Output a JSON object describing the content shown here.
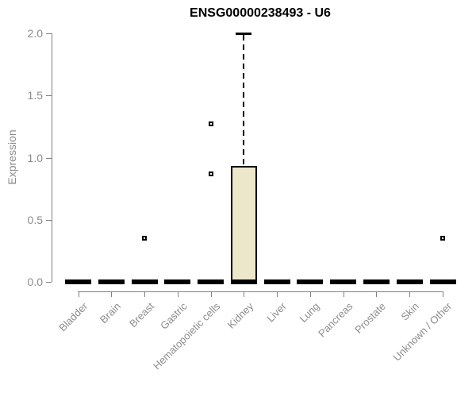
{
  "chart_data": {
    "type": "boxplot",
    "title": "ENSG00000238493 - U6",
    "ylabel": "Expression",
    "xlabel": "",
    "ylim": [
      0.0,
      2.0
    ],
    "yticks": [
      0.0,
      0.5,
      1.0,
      1.5,
      2.0
    ],
    "grid": false,
    "legend": false,
    "categories": [
      "Bladder",
      "Brain",
      "Breast",
      "Gastric",
      "Hematopoietic cells",
      "Kidney",
      "Liver",
      "Lung",
      "Pancreas",
      "Prostate",
      "Skin",
      "Unknown / Other"
    ],
    "series": [
      {
        "name": "Bladder",
        "q1": 0.0,
        "median": 0.0,
        "q3": 0.0,
        "whisker_low": 0.0,
        "whisker_high": 0.0,
        "outliers": []
      },
      {
        "name": "Brain",
        "q1": 0.0,
        "median": 0.0,
        "q3": 0.0,
        "whisker_low": 0.0,
        "whisker_high": 0.0,
        "outliers": []
      },
      {
        "name": "Breast",
        "q1": 0.0,
        "median": 0.0,
        "q3": 0.0,
        "whisker_low": 0.0,
        "whisker_high": 0.0,
        "outliers": [
          0.35
        ]
      },
      {
        "name": "Gastric",
        "q1": 0.0,
        "median": 0.0,
        "q3": 0.0,
        "whisker_low": 0.0,
        "whisker_high": 0.0,
        "outliers": []
      },
      {
        "name": "Hematopoietic cells",
        "q1": 0.0,
        "median": 0.0,
        "q3": 0.0,
        "whisker_low": 0.0,
        "whisker_high": 0.0,
        "outliers": [
          0.87,
          1.27
        ]
      },
      {
        "name": "Kidney",
        "q1": 0.0,
        "median": 0.0,
        "q3": 0.93,
        "whisker_low": 0.0,
        "whisker_high": 2.0,
        "outliers": []
      },
      {
        "name": "Liver",
        "q1": 0.0,
        "median": 0.0,
        "q3": 0.0,
        "whisker_low": 0.0,
        "whisker_high": 0.0,
        "outliers": []
      },
      {
        "name": "Lung",
        "q1": 0.0,
        "median": 0.0,
        "q3": 0.0,
        "whisker_low": 0.0,
        "whisker_high": 0.0,
        "outliers": []
      },
      {
        "name": "Pancreas",
        "q1": 0.0,
        "median": 0.0,
        "q3": 0.0,
        "whisker_low": 0.0,
        "whisker_high": 0.0,
        "outliers": []
      },
      {
        "name": "Prostate",
        "q1": 0.0,
        "median": 0.0,
        "q3": 0.0,
        "whisker_low": 0.0,
        "whisker_high": 0.0,
        "outliers": []
      },
      {
        "name": "Skin",
        "q1": 0.0,
        "median": 0.0,
        "q3": 0.0,
        "whisker_low": 0.0,
        "whisker_high": 0.0,
        "outliers": []
      },
      {
        "name": "Unknown / Other",
        "q1": 0.0,
        "median": 0.0,
        "q3": 0.0,
        "whisker_low": 0.0,
        "whisker_high": 0.0,
        "outliers": [
          0.35
        ]
      }
    ],
    "colors": {
      "box_fill": "#ece7cb",
      "box_border": "#000000",
      "median": "#000000",
      "whisker": "#000000",
      "outlier": "#000000",
      "axis_line": "#808080",
      "tick_label": "#8c8c8c",
      "title": "#000000",
      "background": "#ffffff"
    }
  }
}
